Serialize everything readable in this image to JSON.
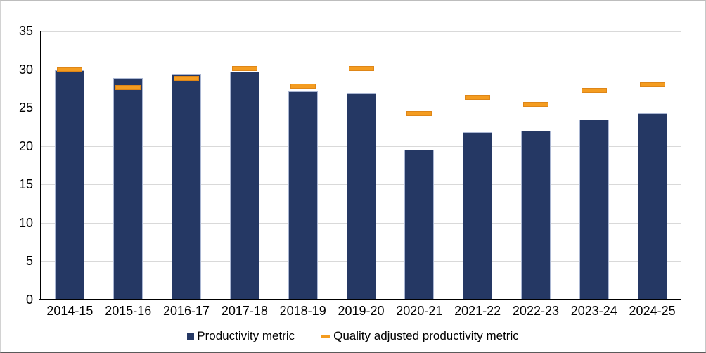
{
  "chart_data": {
    "type": "bar",
    "title": "",
    "categories": [
      "2014-15",
      "2015-16",
      "2016-17",
      "2017-18",
      "2018-19",
      "2019-20",
      "2020-21",
      "2021-22",
      "2022-23",
      "2023-24",
      "2024-25"
    ],
    "series": [
      {
        "name": "Productivity metric",
        "style": "bar",
        "color": "#253864",
        "border_color": "#aab6d2",
        "values": [
          29.9,
          28.9,
          29.4,
          29.7,
          27.1,
          26.9,
          19.5,
          21.8,
          22.0,
          23.5,
          24.3
        ]
      },
      {
        "name": "Quality adjusted productivity metric",
        "style": "dash",
        "color": "#f49c20",
        "border_color": "#de8618",
        "values": [
          30.0,
          27.6,
          28.8,
          30.1,
          27.8,
          30.1,
          24.2,
          26.3,
          25.4,
          27.3,
          28.0
        ]
      }
    ],
    "xlabel": "",
    "ylabel": "",
    "ylim": [
      0,
      35
    ],
    "yticks": [
      0,
      5,
      10,
      15,
      20,
      25,
      30,
      35
    ],
    "grid": true,
    "legend_position": "bottom",
    "axis_color": "#000000",
    "gridline_color": "#d9d9d9"
  }
}
